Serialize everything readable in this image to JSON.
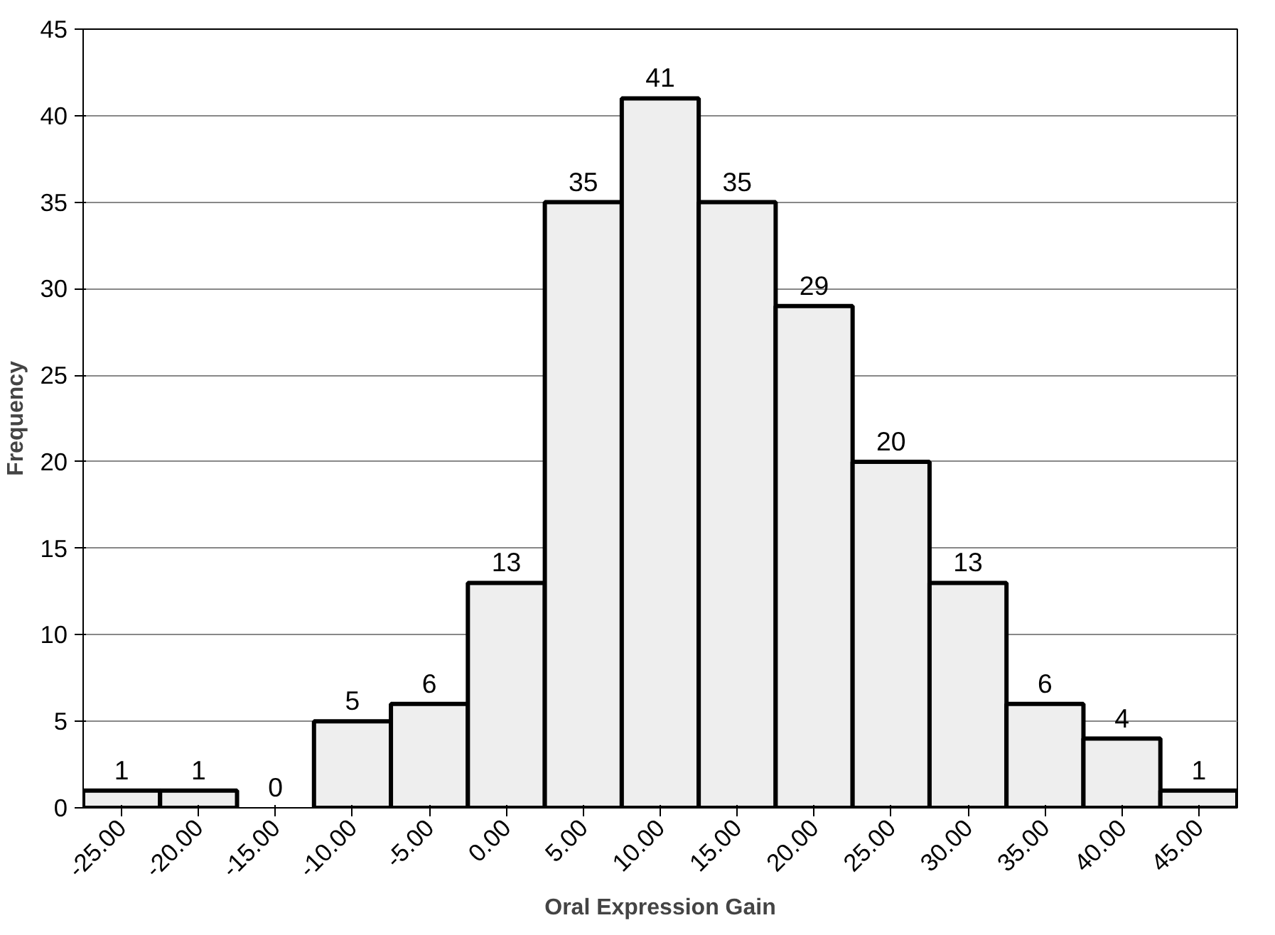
{
  "chart_data": {
    "type": "bar",
    "xlabel": "Oral Expression Gain",
    "ylabel": "Frequency",
    "categories": [
      "-25.00",
      "-20.00",
      "-15.00",
      "-10.00",
      "-5.00",
      "0.00",
      "5.00",
      "10.00",
      "15.00",
      "20.00",
      "25.00",
      "30.00",
      "35.00",
      "40.00",
      "45.00"
    ],
    "values": [
      1,
      1,
      0,
      5,
      6,
      13,
      35,
      41,
      35,
      29,
      20,
      13,
      6,
      4,
      1
    ],
    "color": "#eeeeee",
    "ylim": [
      0,
      45
    ],
    "yticks": [
      0,
      5,
      10,
      15,
      20,
      25,
      30,
      35,
      40,
      45
    ],
    "grid": "y",
    "data_labels": true
  }
}
